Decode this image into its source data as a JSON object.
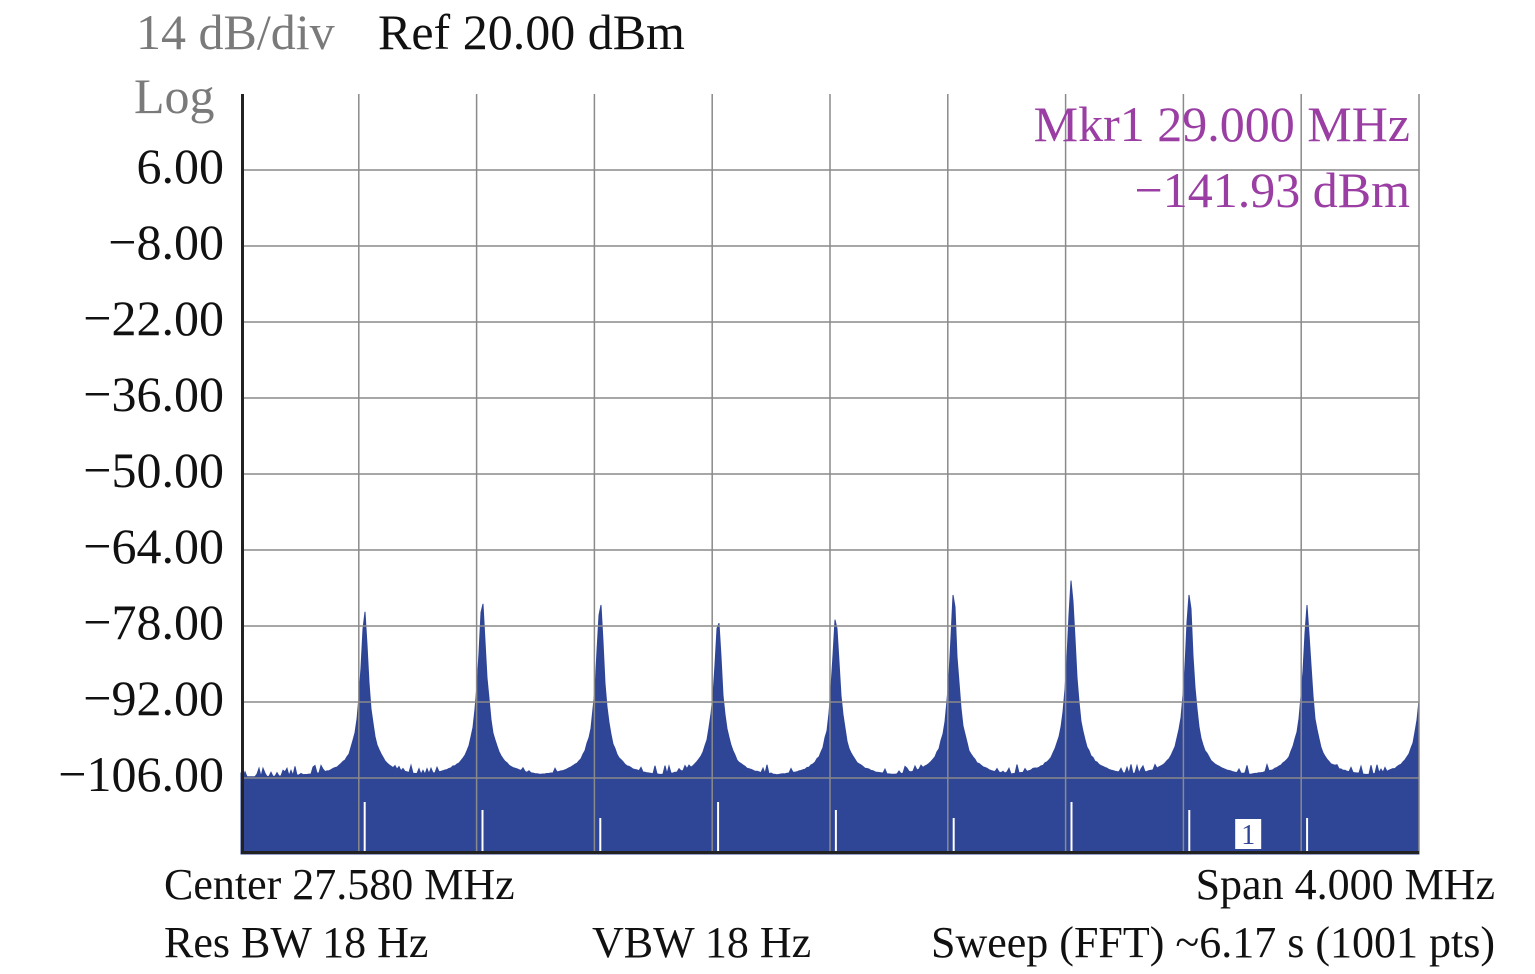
{
  "header": {
    "scale_label": "14 dB/div",
    "ref_label": "Ref 20.00 dBm",
    "log_label": "Log"
  },
  "marker": {
    "line1": "Mkr1 29.000 MHz",
    "line2": "−141.93 dBm",
    "index_label": "1",
    "color": "#9b3ea3"
  },
  "footer": {
    "center": "Center 27.580 MHz",
    "span": "Span 4.000 MHz",
    "rbw": "Res BW 18 Hz",
    "vbw": "VBW 18 Hz",
    "sweep": "Sweep (FFT) ~6.17 s (1001 pts)"
  },
  "colors": {
    "trace": "#2f4596",
    "grid": "#8a8a8a",
    "axis": "#222222"
  },
  "chart_data": {
    "type": "area",
    "title": "",
    "xlabel": "",
    "ylabel": "",
    "ylim": [
      -120,
      20
    ],
    "xlim": [
      25.58,
      29.58
    ],
    "y_tick_labels": [
      "6.00",
      "−8.00",
      "−22.00",
      "−36.00",
      "−50.00",
      "−64.00",
      "−78.00",
      "−92.00",
      "−106.00"
    ],
    "y_ticks": [
      6,
      -8,
      -22,
      -36,
      -50,
      -64,
      -78,
      -92,
      -106
    ],
    "grid": true,
    "x_divisions": 10,
    "y_divisions": 10,
    "noise_floor_dbm": -106,
    "series": [
      {
        "peaks_mhz": [
          26.0,
          26.4,
          26.8,
          27.2,
          27.6,
          28.0,
          28.4,
          28.8,
          29.2,
          29.6
        ],
        "peaks_dbm": [
          -75,
          -72,
          -73,
          -76,
          -76,
          -72,
          -68,
          -71,
          -73,
          -75
        ]
      }
    ],
    "marker": {
      "x_mhz": 29.0,
      "y_dbm": -141.93
    }
  }
}
